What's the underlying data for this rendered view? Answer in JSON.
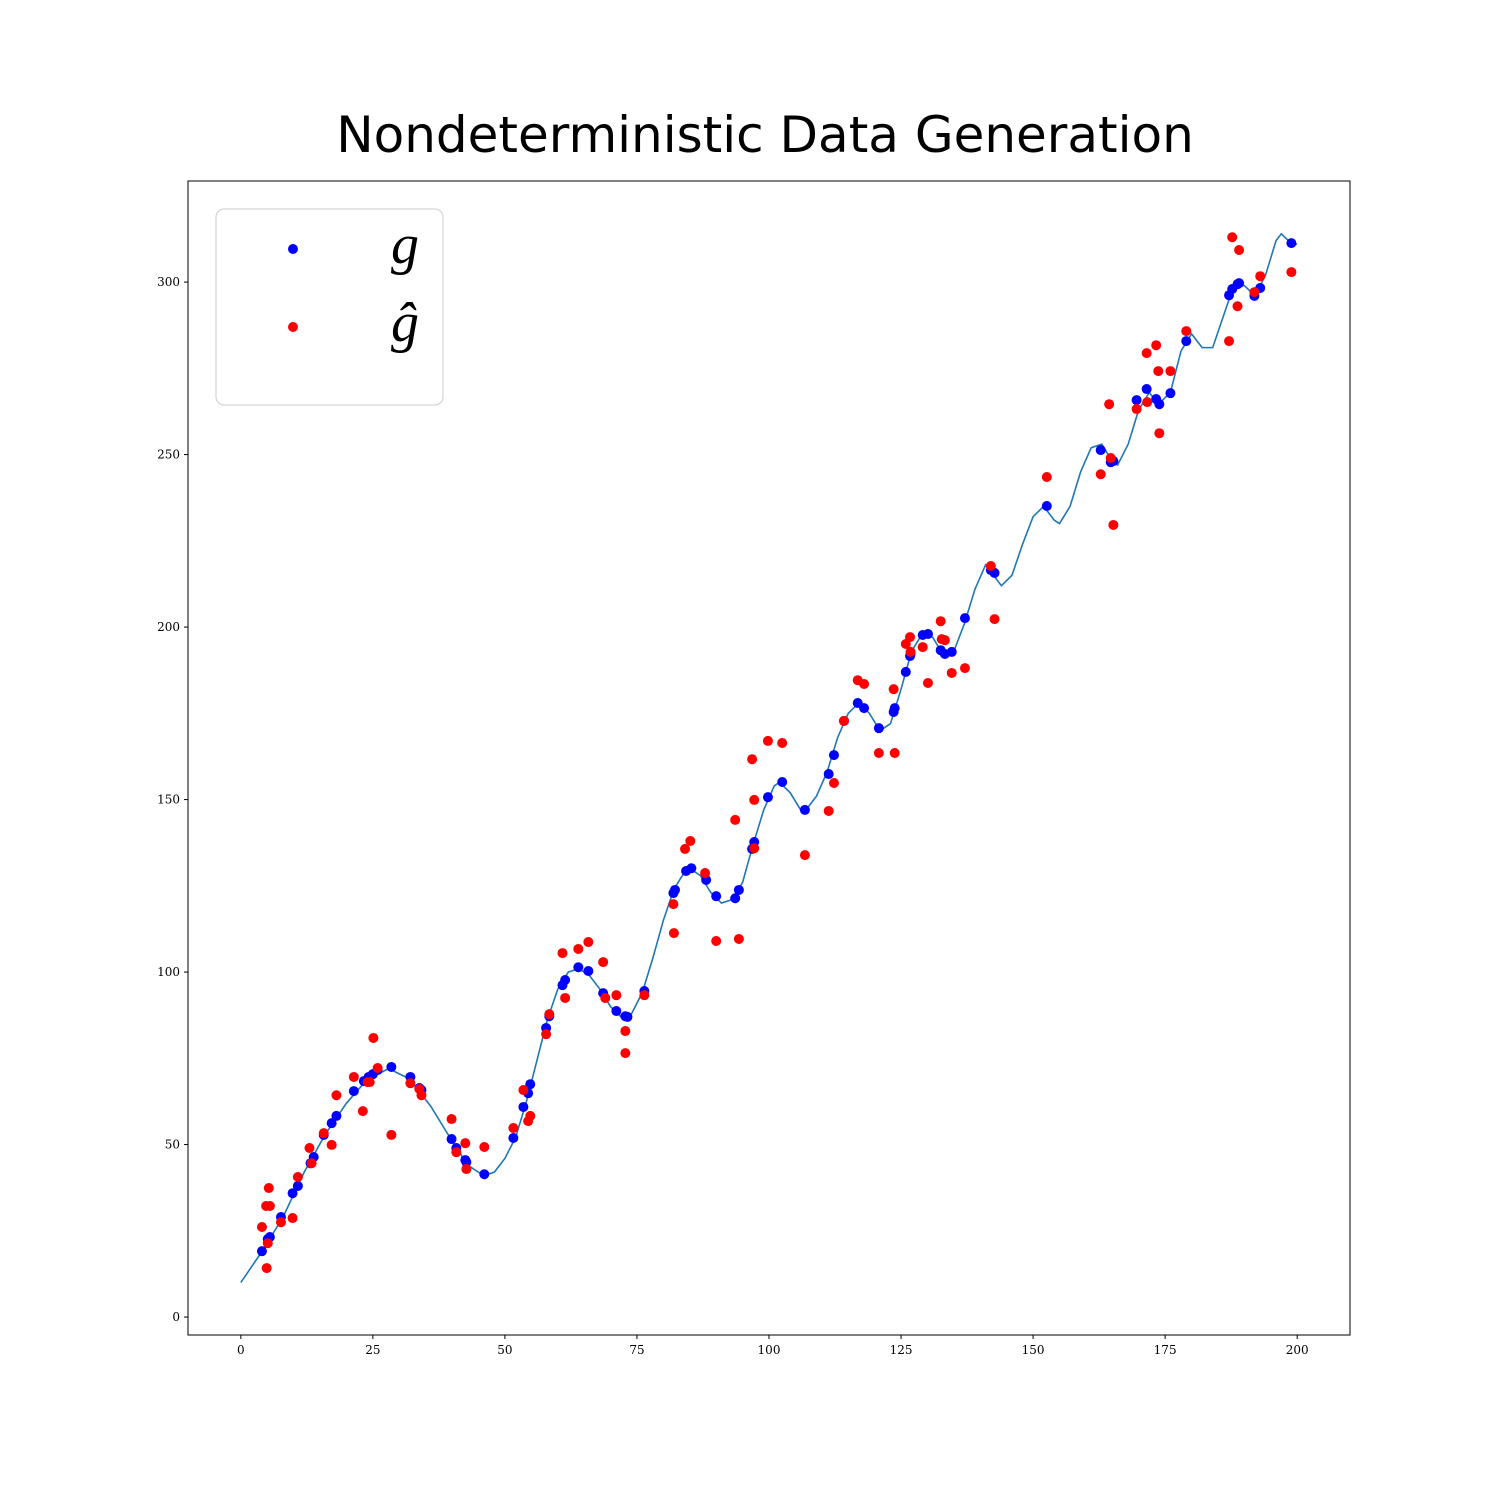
{
  "chart_data": {
    "type": "scatter",
    "title": "Nondeterministic Data Generation",
    "xlim": [
      -10,
      210
    ],
    "ylim": [
      -5.2,
      329.3
    ],
    "xticks": [
      0,
      25,
      50,
      75,
      100,
      125,
      150,
      175,
      200
    ],
    "yticks": [
      0,
      50,
      100,
      150,
      200,
      250,
      300
    ],
    "legend": "upper left",
    "series": [
      {
        "type": "line",
        "color": "#1f77b4",
        "x": [
          0,
          4,
          8,
          12,
          16,
          20,
          24,
          28,
          32,
          36,
          40,
          43,
          46,
          48,
          50,
          52,
          54,
          56,
          58,
          60,
          62,
          64,
          66,
          68,
          70,
          72,
          74,
          76,
          78,
          80,
          82,
          84,
          85,
          87,
          89,
          91,
          93,
          95,
          97,
          99,
          101,
          102,
          104,
          106,
          107,
          109,
          111,
          113,
          115,
          117,
          119,
          121,
          123,
          125,
          127,
          129,
          131,
          133,
          135,
          137,
          139,
          141,
          143,
          144,
          146,
          148,
          150,
          152,
          154,
          155,
          157,
          159,
          161,
          163,
          165,
          166,
          168,
          170,
          172,
          173,
          174,
          176,
          178,
          180,
          182,
          184,
          186,
          188,
          190,
          192,
          194,
          196,
          197,
          199,
          200
        ],
        "values": [
          10,
          19,
          29,
          42,
          53,
          62,
          69,
          72,
          69,
          61,
          51,
          44,
          41,
          42,
          46,
          52,
          62,
          74,
          86,
          95,
          100,
          101,
          99,
          95,
          90,
          87,
          88,
          94,
          104,
          115,
          124,
          129,
          130,
          128,
          123,
          120,
          121,
          126,
          137,
          147,
          154,
          155,
          152,
          147,
          147,
          151,
          158,
          168,
          175,
          178,
          175,
          170,
          172,
          182,
          193,
          198,
          197,
          192,
          193,
          201,
          211,
          218,
          214,
          212,
          215,
          224,
          232,
          235,
          231,
          230,
          235,
          245,
          252,
          253,
          248,
          247,
          253,
          263,
          268,
          266,
          265,
          268,
          280,
          285,
          281,
          281,
          290,
          299,
          299,
          296,
          302,
          312,
          314,
          311,
          311
        ]
      },
      {
        "name": "g",
        "type": "scatter",
        "color": "#0000ff",
        "x": [
          4.0,
          5.1,
          5.5,
          7.6,
          9.8,
          10.8,
          13.2,
          13.8,
          15.7,
          17.2,
          18.1,
          21.4,
          23.3,
          24.2,
          25.0,
          25.9,
          28.5,
          32.1,
          33.8,
          34.2,
          39.9,
          40.8,
          42.5,
          42.7,
          46.1,
          51.6,
          53.5,
          54.4,
          54.8,
          57.8,
          58.4,
          60.9,
          61.4,
          63.9,
          65.8,
          68.6,
          71.1,
          72.8,
          73.2,
          76.4,
          81.9,
          82.2,
          84.3,
          85.3,
          88.1,
          90.0,
          93.6,
          94.3,
          96.8,
          97.2,
          99.8,
          102.5,
          106.8,
          111.3,
          112.3,
          114.2,
          116.8,
          118.0,
          120.8,
          123.6,
          123.8,
          125.9,
          126.7,
          126.8,
          129.1,
          130.1,
          132.5,
          133.3,
          134.6,
          137.1,
          142.0,
          142.7,
          152.6,
          162.8,
          164.7,
          165.2,
          169.6,
          171.5,
          173.3,
          173.9,
          176.0,
          179.0,
          187.1,
          187.7,
          188.7,
          189.0,
          191.9,
          193.0,
          198.9
        ],
        "values": [
          19.1,
          22.6,
          23.2,
          29.0,
          35.9,
          38.0,
          44.6,
          46.4,
          52.8,
          56.2,
          58.3,
          65.5,
          68.4,
          69.6,
          70.4,
          71.6,
          72.5,
          69.6,
          66.4,
          65.8,
          51.6,
          49.0,
          45.5,
          44.9,
          41.4,
          51.9,
          60.9,
          64.9,
          67.5,
          83.8,
          87.2,
          96.2,
          97.7,
          101.4,
          100.3,
          93.9,
          88.7,
          87.2,
          87.0,
          94.5,
          122.9,
          123.8,
          129.3,
          130.1,
          126.7,
          122.0,
          121.4,
          123.8,
          135.7,
          137.7,
          150.7,
          155.1,
          147.0,
          157.4,
          162.9,
          172.8,
          178.0,
          176.5,
          170.7,
          175.4,
          176.5,
          187.0,
          191.6,
          192.2,
          197.7,
          198.0,
          193.3,
          192.2,
          192.8,
          202.6,
          216.5,
          215.7,
          235.1,
          251.3,
          247.8,
          248.1,
          265.8,
          269.0,
          266.1,
          264.6,
          267.8,
          282.9,
          296.2,
          298.0,
          299.4,
          299.7,
          296.0,
          298.3,
          311.3
        ]
      },
      {
        "name": "ĝ",
        "type": "scatter",
        "color": "#ff0000",
        "x": [
          4.0,
          5.3,
          4.8,
          5.5,
          4.9,
          5.1,
          7.6,
          9.8,
          10.8,
          13.0,
          13.4,
          15.7,
          17.2,
          18.1,
          21.4,
          23.1,
          24.0,
          24.4,
          25.1,
          25.9,
          28.5,
          32.1,
          33.8,
          34.2,
          39.9,
          40.8,
          42.5,
          42.7,
          46.1,
          51.6,
          53.5,
          54.4,
          54.8,
          57.8,
          58.4,
          60.9,
          61.4,
          63.9,
          65.8,
          68.6,
          69.0,
          71.1,
          72.8,
          72.8,
          76.4,
          81.9,
          82.0,
          84.1,
          85.1,
          87.9,
          90.0,
          93.6,
          94.3,
          96.8,
          97.2,
          97.2,
          99.8,
          102.5,
          106.8,
          111.3,
          112.3,
          114.2,
          116.8,
          118.0,
          120.8,
          123.6,
          123.8,
          125.9,
          126.7,
          126.8,
          129.1,
          130.1,
          132.5,
          132.7,
          133.3,
          134.6,
          137.1,
          142.0,
          142.7,
          152.6,
          162.8,
          164.4,
          164.7,
          165.2,
          169.6,
          171.5,
          171.6,
          173.3,
          173.7,
          173.9,
          176.0,
          179.0,
          187.1,
          187.7,
          188.7,
          189.0,
          191.9,
          193.0,
          198.9
        ],
        "values": [
          26.1,
          37.4,
          32.2,
          32.2,
          14.2,
          21.4,
          27.5,
          28.7,
          40.6,
          49.0,
          44.6,
          53.3,
          49.9,
          64.3,
          69.6,
          59.7,
          68.1,
          68.1,
          80.9,
          72.2,
          52.8,
          67.8,
          66.1,
          64.3,
          57.4,
          47.8,
          50.4,
          42.9,
          49.3,
          54.8,
          65.8,
          56.8,
          58.3,
          82.0,
          87.8,
          105.5,
          92.5,
          106.7,
          108.7,
          102.9,
          92.5,
          93.3,
          82.9,
          76.5,
          93.3,
          119.7,
          111.3,
          135.7,
          138.0,
          128.7,
          109.0,
          144.1,
          109.6,
          161.7,
          149.9,
          135.9,
          167.0,
          166.4,
          133.9,
          146.7,
          154.8,
          172.8,
          184.6,
          183.5,
          163.5,
          182.0,
          163.5,
          195.1,
          197.1,
          192.8,
          194.2,
          183.8,
          201.7,
          196.5,
          196.2,
          186.7,
          188.1,
          217.7,
          202.3,
          243.5,
          244.3,
          264.6,
          249.0,
          229.6,
          263.2,
          279.4,
          265.2,
          281.7,
          274.2,
          256.2,
          274.2,
          285.8,
          282.9,
          313.0,
          293.0,
          309.3,
          297.1,
          301.7,
          302.9
        ]
      }
    ]
  }
}
